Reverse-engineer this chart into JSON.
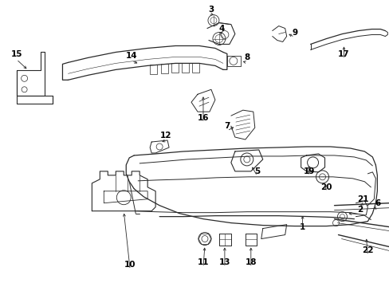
{
  "bg_color": "#ffffff",
  "line_color": "#2a2a2a",
  "lw": 0.7,
  "fig_width": 4.89,
  "fig_height": 3.6,
  "dpi": 100
}
